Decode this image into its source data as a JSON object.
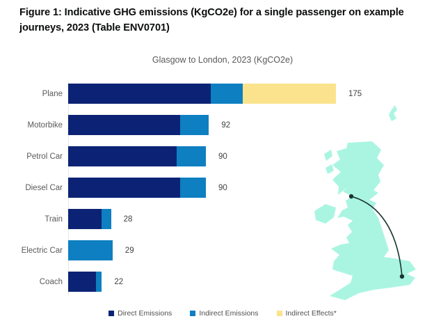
{
  "figure": {
    "title": "Figure 1: Indicative GHG emissions (KgCO2e) for a single passenger on example journeys, 2023 (Table ENV0701)"
  },
  "chart_data": {
    "type": "bar",
    "orientation": "horizontal",
    "title": "Glasgow to London, 2023 (KgCO2e)",
    "categories": [
      "Plane",
      "Motorbike",
      "Petrol Car",
      "Diesel Car",
      "Train",
      "Electric Car",
      "Coach"
    ],
    "series": [
      {
        "name": "Direct Emissions",
        "color": "#0c2375",
        "values": [
          93,
          73,
          71,
          73,
          22,
          0,
          18
        ]
      },
      {
        "name": "Indirect Emissions",
        "color": "#0e7fc1",
        "values": [
          21,
          19,
          19,
          17,
          6,
          29,
          4
        ]
      },
      {
        "name": "Indirect Effects*",
        "color": "#fbe38d",
        "values": [
          61,
          0,
          0,
          0,
          0,
          0,
          0
        ]
      }
    ],
    "totals": [
      175,
      92,
      90,
      90,
      28,
      29,
      22
    ],
    "xlim": [
      0,
      195
    ],
    "grid": false,
    "value_labels": true,
    "legend_position": "bottom"
  },
  "map": {
    "region": "Great Britain",
    "route_from": "Glasgow",
    "route_to": "London",
    "fill_color": "#aaf5e2",
    "route_color": "#1b3531"
  }
}
